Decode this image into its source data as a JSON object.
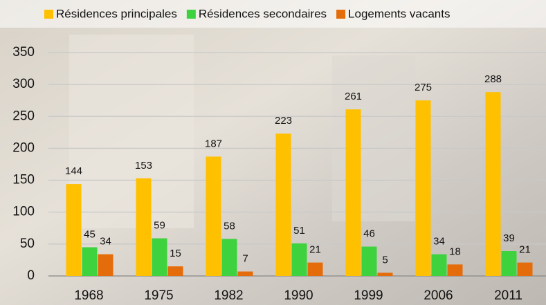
{
  "chart_data": {
    "type": "bar",
    "categories": [
      "1968",
      "1975",
      "1982",
      "1990",
      "1999",
      "2006",
      "2011"
    ],
    "series": [
      {
        "name": "Résidences principales",
        "color": "#ffc000",
        "values": [
          144,
          153,
          187,
          223,
          261,
          275,
          288
        ]
      },
      {
        "name": "Résidences secondaires",
        "color": "#3fd23f",
        "values": [
          45,
          59,
          58,
          51,
          46,
          34,
          39
        ]
      },
      {
        "name": "Logements vacants",
        "color": "#e46c0a",
        "values": [
          34,
          15,
          7,
          21,
          5,
          18,
          21
        ]
      }
    ],
    "ylim": [
      0,
      350
    ],
    "yticks": [
      0,
      50,
      100,
      150,
      200,
      250,
      300,
      350
    ],
    "grid": true,
    "legend": "top"
  }
}
